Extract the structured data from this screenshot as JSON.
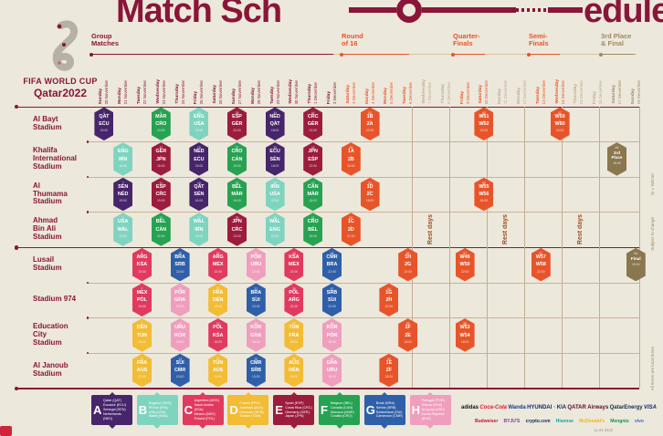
{
  "title": {
    "left": "Match Sch",
    "right": "edule"
  },
  "logo": {
    "line1": "FIFA WORLD CUP",
    "line2": "Qatar2022"
  },
  "colors": {
    "background": "#ece8dc",
    "maroon": "#8a1538",
    "knockout_orange": "#e8542a",
    "final_brown": "#8a774f",
    "taupe": "#a08a62",
    "rest_date": "#c4a98c",
    "rest_text": "#9c4f26",
    "grid_line": "#cdb196"
  },
  "sections": [
    {
      "lines": "Group\nMatches",
      "phase": "group"
    },
    {
      "lines": "Round\nof 16",
      "phase": "ko"
    },
    {
      "lines": "Quarter-\nFinals",
      "phase": "ko"
    },
    {
      "lines": "Semi-\nFinals",
      "phase": "ko"
    },
    {
      "lines": "3rd Place\n& Final",
      "phase": "final"
    }
  ],
  "dates": [
    {
      "day": "Sunday",
      "date": "20 November",
      "phase": "group"
    },
    {
      "day": "Monday",
      "date": "21 November",
      "phase": "group"
    },
    {
      "day": "Tuesday",
      "date": "22 November",
      "phase": "group"
    },
    {
      "day": "Wednesday",
      "date": "23 November",
      "phase": "group"
    },
    {
      "day": "Thursday",
      "date": "24 November",
      "phase": "group"
    },
    {
      "day": "Friday",
      "date": "25 November",
      "phase": "group"
    },
    {
      "day": "Saturday",
      "date": "26 November",
      "phase": "group"
    },
    {
      "day": "Sunday",
      "date": "27 November",
      "phase": "group"
    },
    {
      "day": "Monday",
      "date": "28 November",
      "phase": "group"
    },
    {
      "day": "Tuesday",
      "date": "29 November",
      "phase": "group"
    },
    {
      "day": "Wednesday",
      "date": "30 November",
      "phase": "group"
    },
    {
      "day": "Thursday",
      "date": "1 December",
      "phase": "group"
    },
    {
      "day": "Friday",
      "date": "2 December",
      "phase": "group"
    },
    {
      "day": "Saturday",
      "date": "3 December",
      "phase": "ko"
    },
    {
      "day": "Sunday",
      "date": "4 December",
      "phase": "ko"
    },
    {
      "day": "Monday",
      "date": "5 December",
      "phase": "ko"
    },
    {
      "day": "Tuesday",
      "date": "6 December",
      "phase": "ko"
    },
    {
      "day": "Wednesday",
      "date": "7 December",
      "phase": "rest"
    },
    {
      "day": "Thursday",
      "date": "8 December",
      "phase": "rest"
    },
    {
      "day": "Friday",
      "date": "9 December",
      "phase": "ko"
    },
    {
      "day": "Saturday",
      "date": "10 December",
      "phase": "ko"
    },
    {
      "day": "Sunday",
      "date": "11 December",
      "phase": "rest"
    },
    {
      "day": "Monday",
      "date": "12 December",
      "phase": "rest"
    },
    {
      "day": "Tuesday",
      "date": "13 December",
      "phase": "ko"
    },
    {
      "day": "Wednesday",
      "date": "14 December",
      "phase": "ko"
    },
    {
      "day": "Thursday",
      "date": "15 December",
      "phase": "rest"
    },
    {
      "day": "Friday",
      "date": "16 December",
      "phase": "rest"
    },
    {
      "day": "Saturday",
      "date": "17 December",
      "phase": "final"
    },
    {
      "day": "Sunday",
      "date": "18 December",
      "phase": "final"
    }
  ],
  "stadiums": [
    "Al Bayt\nStadium",
    "Khalifa\nInternational\nStadium",
    "Al\nThumama\nStadium",
    "Ahmad\nBin Ali\nStadium",
    "Lusail\nStadium",
    "Stadium 974",
    "Education\nCity\nStadium",
    "Al Janoub\nStadium"
  ],
  "groups": {
    "A": {
      "color": "#46256a",
      "teams": [
        "Qatar (QAT)",
        "Ecuador (ECU)",
        "Senegal (SEN)",
        "Netherlands (NED)"
      ]
    },
    "B": {
      "color": "#7fd4c0",
      "teams": [
        "England (ENG)",
        "IR Iran (IRN)",
        "USA (USA)",
        "Wales (WAL)"
      ]
    },
    "C": {
      "color": "#e13a5f",
      "teams": [
        "Argentina (ARG)",
        "Saudi Arabia (KSA)",
        "Mexico (MEX)",
        "Poland (POL)"
      ]
    },
    "D": {
      "color": "#f2bc35",
      "teams": [
        "France (FRA)",
        "Australia (AUS)",
        "Denmark (DEN)",
        "Tunisia (TUN)"
      ]
    },
    "E": {
      "color": "#9c1c3d",
      "teams": [
        "Spain (ESP)",
        "Costa Rica (CRC)",
        "Germany (GER)",
        "Japan (JPN)"
      ]
    },
    "F": {
      "color": "#27a252",
      "teams": [
        "Belgium (BEL)",
        "Canada (CAN)",
        "Morocco (MAR)",
        "Croatia (CRO)"
      ]
    },
    "G": {
      "color": "#2f5fa8",
      "teams": [
        "Brazil (BRA)",
        "Serbia (SRB)",
        "Switzerland (SUI)",
        "Cameroon (CMR)"
      ]
    },
    "H": {
      "color": "#f09ebd",
      "teams": [
        "Portugal (POR)",
        "Ghana (GHA)",
        "Uruguay (URU)",
        "Korea Republic (KOR)"
      ]
    }
  },
  "matches": [
    {
      "num": 1,
      "row": 0,
      "col": 0,
      "home": "QAT",
      "away": "ECU",
      "time": "19:00",
      "group": "A"
    },
    {
      "num": 9,
      "row": 0,
      "col": 3,
      "home": "MAR",
      "away": "CRO",
      "time": "13:00",
      "group": "F"
    },
    {
      "num": 20,
      "row": 0,
      "col": 5,
      "home": "ENG",
      "away": "USA",
      "time": "22:00",
      "group": "B"
    },
    {
      "num": 28,
      "row": 0,
      "col": 7,
      "home": "ESP",
      "away": "GER",
      "time": "22:00",
      "group": "E"
    },
    {
      "num": 34,
      "row": 0,
      "col": 9,
      "home": "NED",
      "away": "QAT",
      "time": "18:00",
      "group": "A"
    },
    {
      "num": 44,
      "row": 0,
      "col": 11,
      "home": "CRC",
      "away": "GER",
      "time": "22:00",
      "group": "E"
    },
    {
      "num": 52,
      "row": 0,
      "col": 14,
      "home": "1B",
      "away": "2A",
      "time": "22:00",
      "phase": "ko"
    },
    {
      "num": 60,
      "row": 0,
      "col": 20,
      "home": "W51",
      "away": "W52",
      "time": "22:00",
      "phase": "ko"
    },
    {
      "num": 62,
      "row": 0,
      "col": 24,
      "home": "W59",
      "away": "W60",
      "time": "22:00",
      "phase": "ko"
    },
    {
      "num": 3,
      "row": 1,
      "col": 1,
      "home": "ENG",
      "away": "IRN",
      "time": "16:00",
      "group": "B"
    },
    {
      "num": 10,
      "row": 1,
      "col": 3,
      "home": "GER",
      "away": "JPN",
      "time": "16:00",
      "group": "E"
    },
    {
      "num": 19,
      "row": 1,
      "col": 5,
      "home": "NED",
      "away": "ECU",
      "time": "19:00",
      "group": "A"
    },
    {
      "num": 27,
      "row": 1,
      "col": 7,
      "home": "CRO",
      "away": "CAN",
      "time": "19:00",
      "group": "F"
    },
    {
      "num": 33,
      "row": 1,
      "col": 9,
      "home": "ECU",
      "away": "SEN",
      "time": "18:00",
      "group": "A"
    },
    {
      "num": 43,
      "row": 1,
      "col": 11,
      "home": "JPN",
      "away": "ESP",
      "time": "22:00",
      "group": "E"
    },
    {
      "num": 49,
      "row": 1,
      "col": 13,
      "home": "1A",
      "away": "2B",
      "time": "18:00",
      "phase": "ko"
    },
    {
      "num": 63,
      "row": 1,
      "col": 27,
      "label": "3rd\nPlace",
      "time": "18:00",
      "phase": "final"
    },
    {
      "num": 2,
      "row": 2,
      "col": 1,
      "home": "SEN",
      "away": "NED",
      "time": "19:00",
      "group": "A"
    },
    {
      "num": 11,
      "row": 2,
      "col": 3,
      "home": "ESP",
      "away": "CRC",
      "time": "19:00",
      "group": "E"
    },
    {
      "num": 18,
      "row": 2,
      "col": 5,
      "home": "QAT",
      "away": "SEN",
      "time": "16:00",
      "group": "A"
    },
    {
      "num": 26,
      "row": 2,
      "col": 7,
      "home": "BEL",
      "away": "MAR",
      "time": "16:00",
      "group": "F"
    },
    {
      "num": 35,
      "row": 2,
      "col": 9,
      "home": "IRN",
      "away": "USA",
      "time": "22:00",
      "group": "B"
    },
    {
      "num": 42,
      "row": 2,
      "col": 11,
      "home": "CAN",
      "away": "MAR",
      "time": "18:00",
      "group": "F"
    },
    {
      "num": 51,
      "row": 2,
      "col": 14,
      "home": "1D",
      "away": "2C",
      "time": "18:00",
      "phase": "ko"
    },
    {
      "num": 59,
      "row": 2,
      "col": 20,
      "home": "W55",
      "away": "W56",
      "time": "18:00",
      "phase": "ko"
    },
    {
      "num": 4,
      "row": 3,
      "col": 1,
      "home": "USA",
      "away": "WAL",
      "time": "22:00",
      "group": "B"
    },
    {
      "num": 12,
      "row": 3,
      "col": 3,
      "home": "BEL",
      "away": "CAN",
      "time": "22:00",
      "group": "F"
    },
    {
      "num": 17,
      "row": 3,
      "col": 5,
      "home": "WAL",
      "away": "IRN",
      "time": "13:00",
      "group": "B"
    },
    {
      "num": 25,
      "row": 3,
      "col": 7,
      "home": "JPN",
      "away": "CRC",
      "time": "13:00",
      "group": "E"
    },
    {
      "num": 36,
      "row": 3,
      "col": 9,
      "home": "WAL",
      "away": "ENG",
      "time": "22:00",
      "group": "B"
    },
    {
      "num": 41,
      "row": 3,
      "col": 11,
      "home": "CRO",
      "away": "BEL",
      "time": "18:00",
      "group": "F"
    },
    {
      "num": 50,
      "row": 3,
      "col": 13,
      "home": "1C",
      "away": "2D",
      "time": "22:00",
      "phase": "ko"
    },
    {
      "num": 5,
      "row": 4,
      "col": 2,
      "home": "ARG",
      "away": "KSA",
      "time": "13:00",
      "group": "C"
    },
    {
      "num": 16,
      "row": 4,
      "col": 4,
      "home": "BRA",
      "away": "SRB",
      "time": "22:00",
      "group": "G"
    },
    {
      "num": 24,
      "row": 4,
      "col": 6,
      "home": "ARG",
      "away": "MEX",
      "time": "22:00",
      "group": "C"
    },
    {
      "num": 32,
      "row": 4,
      "col": 8,
      "home": "POR",
      "away": "URU",
      "time": "22:00",
      "group": "H"
    },
    {
      "num": 40,
      "row": 4,
      "col": 10,
      "home": "KSA",
      "away": "MEX",
      "time": "22:00",
      "group": "C"
    },
    {
      "num": 48,
      "row": 4,
      "col": 12,
      "home": "CMR",
      "away": "BRA",
      "time": "22:00",
      "group": "G"
    },
    {
      "num": 56,
      "row": 4,
      "col": 16,
      "home": "1H",
      "away": "2G",
      "time": "22:00",
      "phase": "ko"
    },
    {
      "num": 57,
      "row": 4,
      "col": 19,
      "home": "W49",
      "away": "W50",
      "time": "22:00",
      "phase": "ko"
    },
    {
      "num": 61,
      "row": 4,
      "col": 23,
      "home": "W57",
      "away": "W58",
      "time": "22:00",
      "phase": "ko"
    },
    {
      "num": 64,
      "row": 4,
      "col": 28,
      "label": "Final",
      "time": "18:00",
      "phase": "final"
    },
    {
      "num": 7,
      "row": 5,
      "col": 2,
      "home": "MEX",
      "away": "POL",
      "time": "19:00",
      "group": "C"
    },
    {
      "num": 15,
      "row": 5,
      "col": 4,
      "home": "POR",
      "away": "GHA",
      "time": "19:00",
      "group": "H"
    },
    {
      "num": 23,
      "row": 5,
      "col": 6,
      "home": "FRA",
      "away": "DEN",
      "time": "19:00",
      "group": "D"
    },
    {
      "num": 31,
      "row": 5,
      "col": 8,
      "home": "BRA",
      "away": "SUI",
      "time": "19:00",
      "group": "G"
    },
    {
      "num": 39,
      "row": 5,
      "col": 10,
      "home": "POL",
      "away": "ARG",
      "time": "22:00",
      "group": "C"
    },
    {
      "num": 47,
      "row": 5,
      "col": 12,
      "home": "SRB",
      "away": "SUI",
      "time": "22:00",
      "group": "G"
    },
    {
      "num": 54,
      "row": 5,
      "col": 15,
      "home": "1G",
      "away": "2H",
      "time": "22:00",
      "phase": "ko"
    },
    {
      "num": 6,
      "row": 6,
      "col": 2,
      "home": "DEN",
      "away": "TUN",
      "time": "16:00",
      "group": "D"
    },
    {
      "num": 14,
      "row": 6,
      "col": 4,
      "home": "URU",
      "away": "KOR",
      "time": "16:00",
      "group": "H"
    },
    {
      "num": 22,
      "row": 6,
      "col": 6,
      "home": "POL",
      "away": "KSA",
      "time": "16:00",
      "group": "C"
    },
    {
      "num": 30,
      "row": 6,
      "col": 8,
      "home": "KOR",
      "away": "GHA",
      "time": "16:00",
      "group": "H"
    },
    {
      "num": 37,
      "row": 6,
      "col": 10,
      "home": "TUN",
      "away": "FRA",
      "time": "18:00",
      "group": "D"
    },
    {
      "num": 45,
      "row": 6,
      "col": 12,
      "home": "KOR",
      "away": "POR",
      "time": "18:00",
      "group": "H"
    },
    {
      "num": 55,
      "row": 6,
      "col": 16,
      "home": "1F",
      "away": "2E",
      "time": "18:00",
      "phase": "ko"
    },
    {
      "num": 58,
      "row": 6,
      "col": 19,
      "home": "W53",
      "away": "W54",
      "time": "18:00",
      "phase": "ko"
    },
    {
      "num": 8,
      "row": 7,
      "col": 2,
      "home": "FRA",
      "away": "AUS",
      "time": "22:00",
      "group": "D"
    },
    {
      "num": 13,
      "row": 7,
      "col": 4,
      "home": "SUI",
      "away": "CMR",
      "time": "13:00",
      "group": "G"
    },
    {
      "num": 21,
      "row": 7,
      "col": 6,
      "home": "TUN",
      "away": "AUS",
      "time": "13:00",
      "group": "D"
    },
    {
      "num": 29,
      "row": 7,
      "col": 8,
      "home": "CMR",
      "away": "SRB",
      "time": "13:00",
      "group": "G"
    },
    {
      "num": 38,
      "row": 7,
      "col": 10,
      "home": "AUS",
      "away": "DEN",
      "time": "18:00",
      "group": "D"
    },
    {
      "num": 46,
      "row": 7,
      "col": 12,
      "home": "GHA",
      "away": "URU",
      "time": "18:00",
      "group": "H"
    },
    {
      "num": 53,
      "row": 7,
      "col": 15,
      "home": "1E",
      "away": "2F",
      "time": "18:00",
      "phase": "ko"
    }
  ],
  "notes": {
    "rest_days": "Rest days",
    "w_winner": "W = Winner",
    "subject": "Subject to change",
    "local_times": "All times are local times",
    "version": "11.04.2022"
  },
  "sponsors": {
    "row1": [
      {
        "name": "adidas",
        "color": "#111111"
      },
      {
        "name": "Coca-Cola",
        "color": "#d7172f"
      },
      {
        "name": "Wanda",
        "color": "#0f3f8f"
      },
      {
        "name": "HYUNDAI · KIA",
        "color": "#0f2a63"
      },
      {
        "name": "QATAR Airways",
        "color": "#5c0632"
      },
      {
        "name": "QatarEnergy",
        "color": "#0d3050"
      },
      {
        "name": "VISA",
        "color": "#1a1f71"
      }
    ],
    "row2": [
      {
        "name": "Budweiser",
        "color": "#c8102e"
      },
      {
        "name": "BYJU'S",
        "color": "#7b3fa0"
      },
      {
        "name": "crypto.com",
        "color": "#0b2a5b"
      },
      {
        "name": "Hisense",
        "color": "#00a7a5"
      },
      {
        "name": "McDonald's",
        "color": "#f7b500"
      },
      {
        "name": "Mengniu",
        "color": "#0d9a48"
      },
      {
        "name": "vivo",
        "color": "#3f6ad8"
      }
    ]
  }
}
